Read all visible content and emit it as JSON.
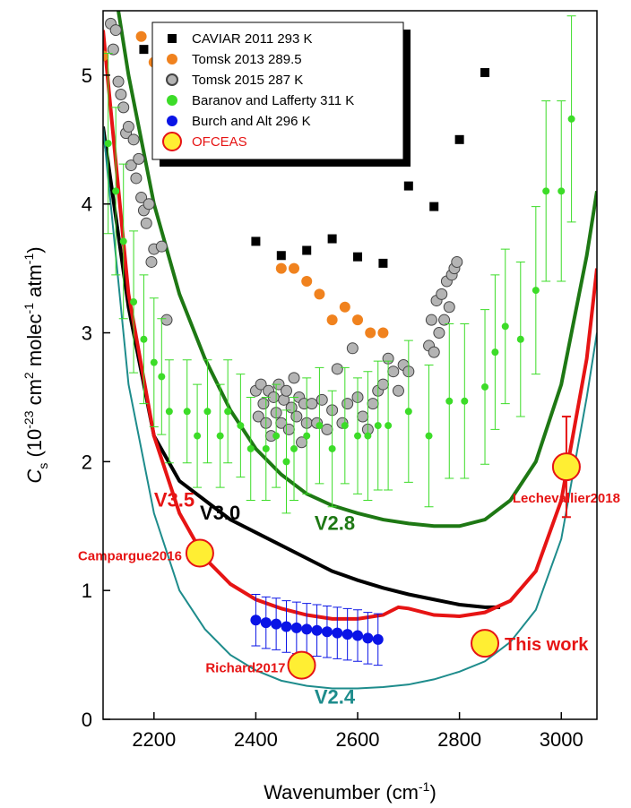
{
  "chart_data": {
    "type": "scatter",
    "x_label": [
      "Wavenumber (cm",
      "-1",
      ")"
    ],
    "y_label": [
      "C",
      "s",
      " (10",
      "-23",
      " cm",
      "2",
      " molec",
      "-1",
      " atm",
      "-1",
      ")"
    ],
    "xlim": [
      2100,
      3070
    ],
    "ylim": [
      0,
      5.5
    ],
    "xticks": [
      2200,
      2400,
      2600,
      2800,
      3000
    ],
    "yticks": [
      0,
      1,
      2,
      3,
      4,
      5
    ],
    "series": [
      {
        "name": "CAVIAR 2011 293 K",
        "color": "#000000",
        "marker": "square",
        "x": [
          2180,
          2400,
          2450,
          2500,
          2550,
          2600,
          2650,
          2700,
          2750,
          2800,
          2850
        ],
        "values": [
          5.2,
          3.71,
          3.6,
          3.64,
          3.73,
          3.59,
          3.54,
          4.14,
          3.98,
          4.5,
          5.02
        ]
      },
      {
        "name": "Tomsk 2013 289.5",
        "color": "#f0821e",
        "marker": "circle",
        "x": [
          2100,
          2175,
          2200,
          2450,
          2475,
          2500,
          2525,
          2550,
          2575,
          2600,
          2625,
          2650
        ],
        "values": [
          5.15,
          5.3,
          5.1,
          3.5,
          3.5,
          3.4,
          3.3,
          3.1,
          3.2,
          3.1,
          3.0,
          3.0
        ]
      },
      {
        "name": "Tomsk 2015 287 K",
        "color": "#b4b4b4",
        "marker": "circle",
        "x": [
          2115,
          2120,
          2125,
          2130,
          2135,
          2140,
          2145,
          2150,
          2155,
          2160,
          2165,
          2170,
          2175,
          2180,
          2185,
          2190,
          2195,
          2200,
          2215,
          2225,
          2400,
          2405,
          2410,
          2415,
          2420,
          2425,
          2430,
          2435,
          2440,
          2445,
          2450,
          2455,
          2460,
          2465,
          2470,
          2475,
          2480,
          2485,
          2490,
          2495,
          2500,
          2510,
          2520,
          2530,
          2540,
          2550,
          2560,
          2570,
          2580,
          2590,
          2600,
          2610,
          2620,
          2630,
          2640,
          2650,
          2660,
          2670,
          2680,
          2690,
          2700,
          2740,
          2745,
          2750,
          2755,
          2760,
          2765,
          2770,
          2775,
          2780,
          2785,
          2790,
          2795
        ],
        "values": [
          5.4,
          5.2,
          5.35,
          4.95,
          4.85,
          4.75,
          4.55,
          4.6,
          4.3,
          4.5,
          4.2,
          4.35,
          4.05,
          3.95,
          3.85,
          4.0,
          3.55,
          3.65,
          3.67,
          3.1,
          2.55,
          2.35,
          2.6,
          2.45,
          2.3,
          2.55,
          2.2,
          2.5,
          2.38,
          2.6,
          2.3,
          2.48,
          2.55,
          2.25,
          2.42,
          2.65,
          2.35,
          2.5,
          2.15,
          2.45,
          2.3,
          2.45,
          2.3,
          2.48,
          2.25,
          2.4,
          2.72,
          2.3,
          2.45,
          2.88,
          2.5,
          2.35,
          2.25,
          2.45,
          2.55,
          2.6,
          2.8,
          2.7,
          2.55,
          2.75,
          2.7,
          2.9,
          3.1,
          2.85,
          3.25,
          3.0,
          3.3,
          3.1,
          3.4,
          3.2,
          3.45,
          3.5,
          3.55
        ]
      },
      {
        "name": "Baranov and Lafferty 311 K",
        "color": "#3cdc28",
        "marker": "small-circle",
        "x": [
          2110,
          2125,
          2140,
          2160,
          2180,
          2200,
          2215,
          2230,
          2265,
          2285,
          2305,
          2330,
          2345,
          2370,
          2390,
          2420,
          2440,
          2460,
          2475,
          2500,
          2525,
          2550,
          2575,
          2600,
          2620,
          2640,
          2660,
          2700,
          2740,
          2780,
          2810,
          2850,
          2870,
          2890,
          2920,
          2950,
          2970,
          3000,
          3020
        ],
        "values": [
          4.47,
          4.1,
          3.71,
          3.24,
          2.95,
          2.77,
          2.66,
          2.39,
          2.39,
          2.2,
          2.39,
          2.2,
          2.39,
          2.28,
          2.1,
          2.1,
          2.2,
          2.0,
          2.1,
          2.2,
          2.28,
          2.1,
          2.28,
          2.2,
          2.2,
          2.28,
          2.28,
          2.39,
          2.2,
          2.47,
          2.47,
          2.58,
          2.85,
          3.05,
          2.95,
          3.33,
          4.1,
          4.1,
          4.66
        ],
        "errors": [
          0.7,
          0.65,
          0.6,
          0.55,
          0.5,
          0.5,
          0.45,
          0.4,
          0.4,
          0.4,
          0.4,
          0.4,
          0.4,
          0.4,
          0.4,
          0.4,
          0.4,
          0.4,
          0.4,
          0.45,
          0.45,
          0.45,
          0.45,
          0.45,
          0.5,
          0.5,
          0.5,
          0.55,
          0.55,
          0.6,
          0.6,
          0.6,
          0.6,
          0.6,
          0.6,
          0.65,
          0.7,
          0.7,
          0.8
        ]
      },
      {
        "name": "Burch and Alt 296 K",
        "color": "#0a14e6",
        "marker": "circle",
        "x": [
          2400,
          2420,
          2440,
          2460,
          2480,
          2500,
          2520,
          2540,
          2560,
          2580,
          2600,
          2620,
          2640
        ],
        "values": [
          0.77,
          0.75,
          0.74,
          0.72,
          0.71,
          0.7,
          0.69,
          0.68,
          0.67,
          0.66,
          0.65,
          0.63,
          0.62
        ],
        "errors": [
          0.2,
          0.2,
          0.2,
          0.2,
          0.2,
          0.2,
          0.2,
          0.2,
          0.2,
          0.2,
          0.2,
          0.2,
          0.2
        ]
      },
      {
        "name": "OFCEAS",
        "color": "#ffee33",
        "marker": "big-circle",
        "x": [
          2290,
          2490,
          2850,
          3010
        ],
        "values": [
          1.29,
          0.42,
          0.59,
          1.96
        ],
        "errors": [
          0.05,
          0.05,
          0.05,
          0.39
        ],
        "point_labels": [
          "Campargue2016",
          "Richard2017",
          "This work",
          "Lechevallier2018"
        ]
      }
    ],
    "curves": [
      {
        "name": "V2.8",
        "color": "#1e7814",
        "x": [
          2130,
          2150,
          2200,
          2250,
          2300,
          2350,
          2400,
          2450,
          2500,
          2550,
          2600,
          2650,
          2700,
          2750,
          2800,
          2850,
          2900,
          2950,
          3000,
          3050,
          3070
        ],
        "values": [
          5.5,
          5.0,
          4.0,
          3.3,
          2.8,
          2.4,
          2.1,
          1.9,
          1.75,
          1.66,
          1.6,
          1.55,
          1.52,
          1.5,
          1.5,
          1.55,
          1.7,
          2.0,
          2.6,
          3.6,
          4.1
        ]
      },
      {
        "name": "V3.0",
        "color": "#000000",
        "x": [
          2100,
          2150,
          2200,
          2250,
          2300,
          2350,
          2400,
          2450,
          2500,
          2550,
          2600,
          2650,
          2700,
          2750,
          2800,
          2850,
          2880
        ],
        "values": [
          4.6,
          3.2,
          2.2,
          1.85,
          1.7,
          1.55,
          1.45,
          1.35,
          1.25,
          1.15,
          1.08,
          1.02,
          0.97,
          0.93,
          0.89,
          0.87,
          0.87
        ]
      },
      {
        "name": "V3.5",
        "color": "#e61414",
        "x": [
          2100,
          2150,
          2200,
          2250,
          2300,
          2350,
          2400,
          2450,
          2500,
          2550,
          2600,
          2650,
          2680,
          2700,
          2750,
          2800,
          2850,
          2900,
          2950,
          3000,
          3050,
          3070
        ],
        "values": [
          5.35,
          3.3,
          2.2,
          1.6,
          1.25,
          1.05,
          0.93,
          0.86,
          0.81,
          0.78,
          0.78,
          0.81,
          0.87,
          0.86,
          0.81,
          0.8,
          0.83,
          0.92,
          1.15,
          1.7,
          2.8,
          3.5
        ]
      },
      {
        "name": "V2.4",
        "color": "#1e8c8c",
        "x": [
          2100,
          2150,
          2200,
          2250,
          2300,
          2350,
          2400,
          2450,
          2500,
          2550,
          2600,
          2650,
          2700,
          2750,
          2800,
          2850,
          2900,
          2950,
          3000,
          3050,
          3070
        ],
        "values": [
          4.6,
          2.6,
          1.6,
          1.0,
          0.7,
          0.5,
          0.38,
          0.3,
          0.26,
          0.24,
          0.24,
          0.25,
          0.27,
          0.31,
          0.37,
          0.45,
          0.6,
          0.85,
          1.4,
          2.5,
          3.0
        ]
      }
    ]
  }
}
